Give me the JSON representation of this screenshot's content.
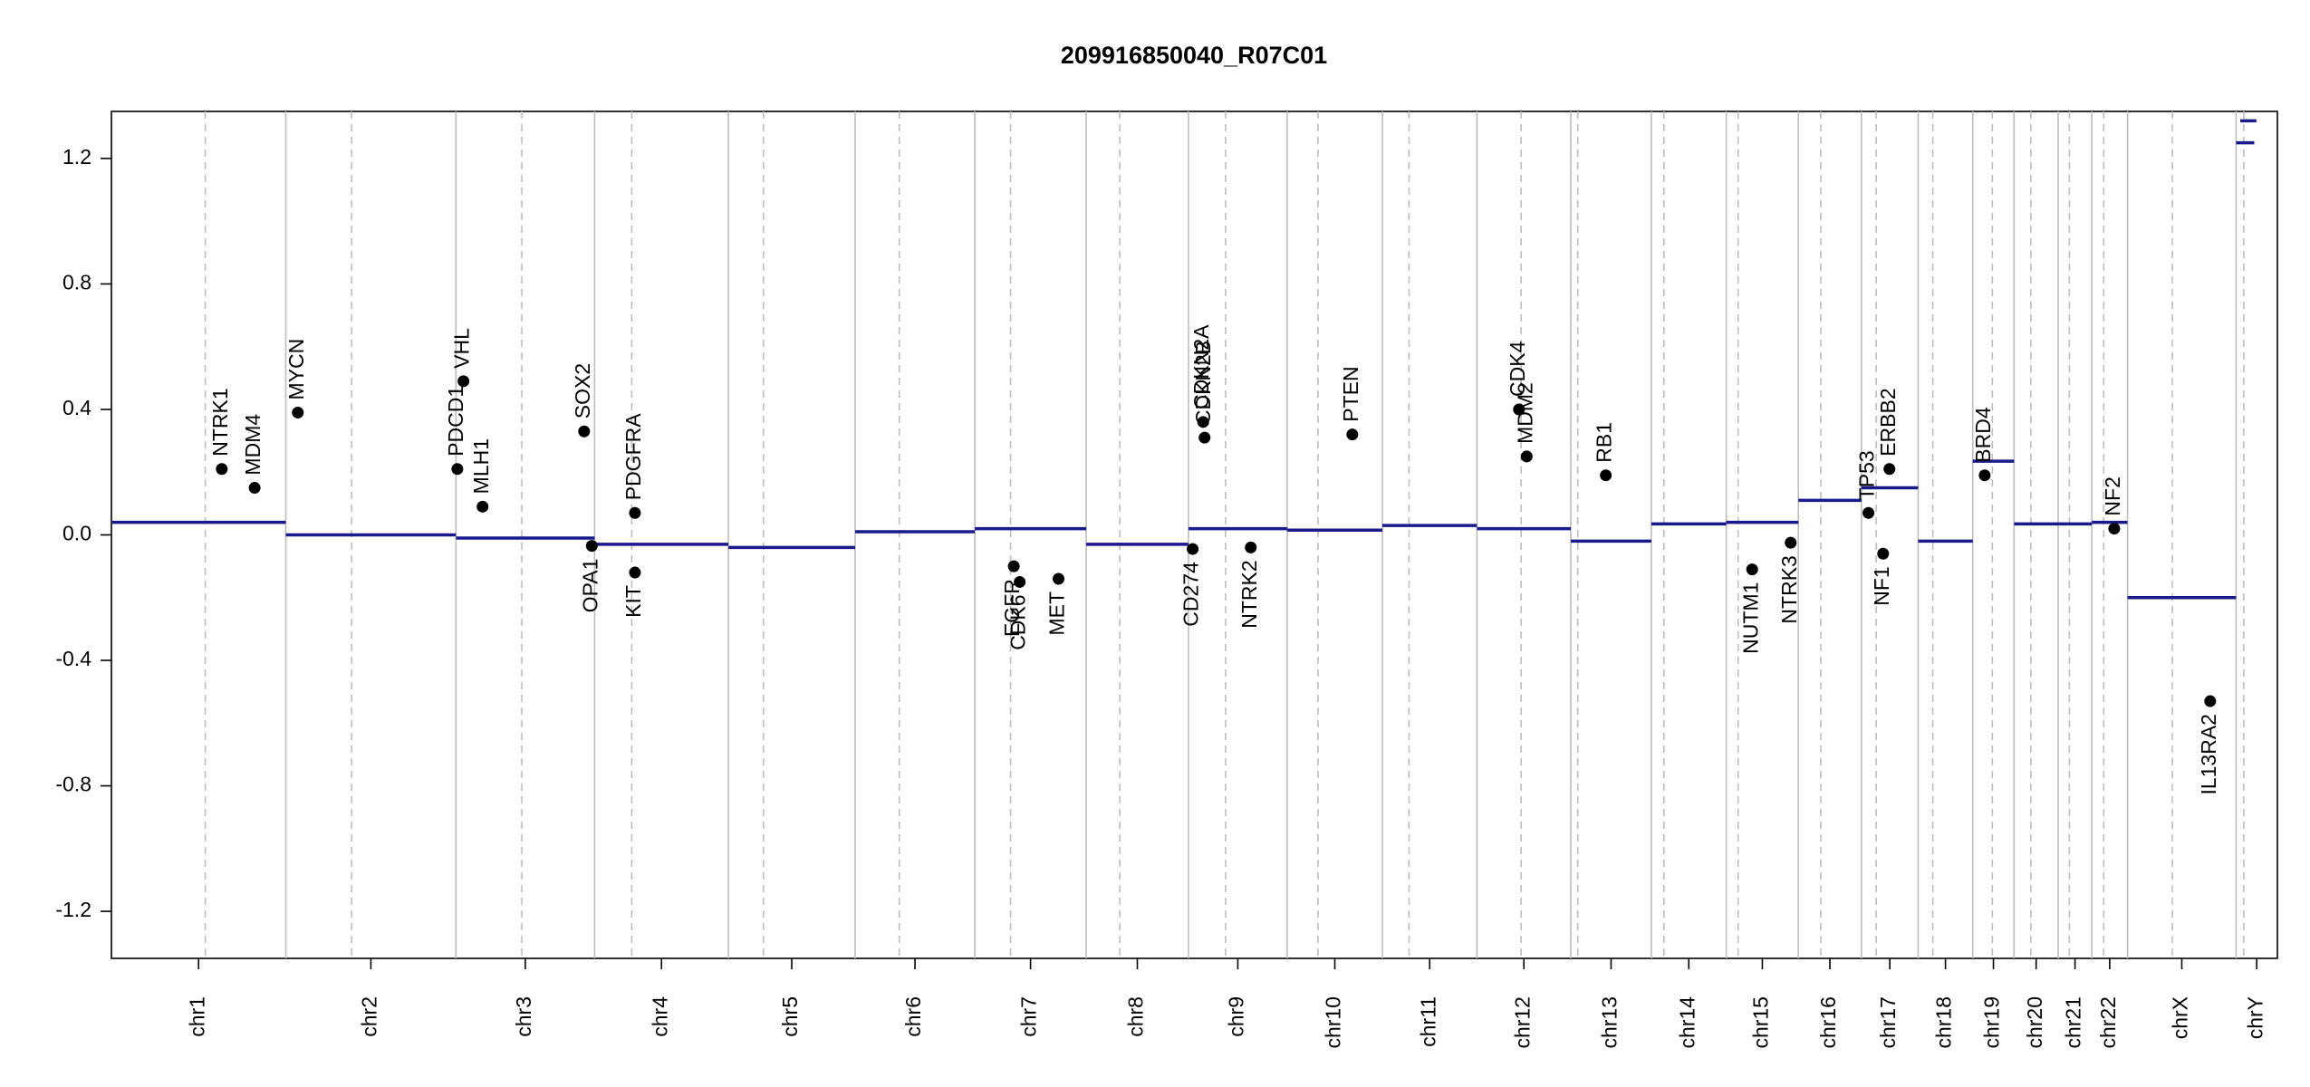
{
  "chart_data": {
    "type": "copy-number",
    "title": "209916850040_R07C01",
    "xlim": [
      0,
      3093
    ],
    "ylim": [
      -1.35,
      1.35
    ],
    "yticks": [
      -1.2,
      -0.8,
      -0.4,
      {
        "value": 0,
        "label": "0.0"
      },
      0.4,
      0.8,
      1.2
    ],
    "xticks": [
      {
        "value": 124.5,
        "label": "chr1"
      },
      {
        "value": 370.5,
        "label": "chr2"
      },
      {
        "value": 591,
        "label": "chr3"
      },
      {
        "value": 785.5,
        "label": "chr4"
      },
      {
        "value": 971.5,
        "label": "chr5"
      },
      {
        "value": 1147.5,
        "label": "chr6"
      },
      {
        "value": 1312.5,
        "label": "chr7"
      },
      {
        "value": 1465,
        "label": "chr8"
      },
      {
        "value": 1608.5,
        "label": "chr9"
      },
      {
        "value": 1747,
        "label": "chr10"
      },
      {
        "value": 1882.5,
        "label": "chr11"
      },
      {
        "value": 2017,
        "label": "chr12"
      },
      {
        "value": 2141.5,
        "label": "chr13"
      },
      {
        "value": 2252.5,
        "label": "chr14"
      },
      {
        "value": 2357.5,
        "label": "chr15"
      },
      {
        "value": 2454,
        "label": "chr16"
      },
      {
        "value": 2539.5,
        "label": "chr17"
      },
      {
        "value": 2619,
        "label": "chr18"
      },
      {
        "value": 2687.5,
        "label": "chr19"
      },
      {
        "value": 2748.5,
        "label": "chr20"
      },
      {
        "value": 2804,
        "label": "chr21"
      },
      {
        "value": 2853.5,
        "label": "chr22"
      },
      {
        "value": 2956.5,
        "label": "chrX"
      },
      {
        "value": 3063.5,
        "label": "chrY"
      }
    ],
    "boundaries": [
      249,
      492,
      690,
      881,
      1062,
      1233,
      1392,
      1538,
      1679,
      1815,
      1950,
      2084,
      2199,
      2306,
      2409,
      2499,
      2580,
      2658,
      2717,
      2780,
      2828,
      2879,
      3034
    ],
    "centromeres": [
      134,
      343,
      586,
      743,
      931,
      1125,
      1284,
      1440,
      1591,
      1723,
      1853,
      2013,
      2094,
      2217,
      2323,
      2441,
      2520,
      2601,
      2686,
      2741,
      2796,
      2845,
      2943,
      3045
    ],
    "segment_color": "#1a1a8c",
    "segments": [
      {
        "start": 0,
        "end": 249,
        "value": 0.04
      },
      {
        "start": 249,
        "end": 492,
        "value": 0.0
      },
      {
        "start": 492,
        "end": 690,
        "value": -0.01
      },
      {
        "start": 690,
        "end": 881,
        "value": -0.03
      },
      {
        "start": 881,
        "end": 1062,
        "value": -0.04
      },
      {
        "start": 1062,
        "end": 1233,
        "value": 0.01
      },
      {
        "start": 1233,
        "end": 1392,
        "value": 0.02
      },
      {
        "start": 1392,
        "end": 1538,
        "value": -0.03
      },
      {
        "start": 1538,
        "end": 1679,
        "value": 0.02
      },
      {
        "start": 1679,
        "end": 1815,
        "value": 0.015
      },
      {
        "start": 1815,
        "end": 1950,
        "value": 0.03
      },
      {
        "start": 1950,
        "end": 2084,
        "value": 0.02
      },
      {
        "start": 2084,
        "end": 2199,
        "value": -0.02
      },
      {
        "start": 2199,
        "end": 2306,
        "value": 0.035
      },
      {
        "start": 2306,
        "end": 2409,
        "value": 0.04
      },
      {
        "start": 2409,
        "end": 2499,
        "value": 0.11
      },
      {
        "start": 2499,
        "end": 2580,
        "value": 0.15
      },
      {
        "start": 2580,
        "end": 2658,
        "value": -0.02
      },
      {
        "start": 2658,
        "end": 2717,
        "value": 0.235
      },
      {
        "start": 2717,
        "end": 2780,
        "value": 0.035
      },
      {
        "start": 2780,
        "end": 2828,
        "value": 0.035
      },
      {
        "start": 2828,
        "end": 2879,
        "value": 0.04
      },
      {
        "start": 2879,
        "end": 3034,
        "value": -0.2
      },
      {
        "start": 3040,
        "end": 3063,
        "value": 1.32
      },
      {
        "start": 3034,
        "end": 3060,
        "value": 1.25
      }
    ],
    "genes": [
      {
        "name": "NTRK1",
        "x": 157.6,
        "value": 0.21
      },
      {
        "name": "MDM4",
        "x": 204.5,
        "value": 0.15
      },
      {
        "name": "MYCN",
        "x": 266.2,
        "value": 0.39
      },
      {
        "name": "PDCD1",
        "x": 494,
        "value": 0.21
      },
      {
        "name": "VHL",
        "x": 502.7,
        "value": 0.49
      },
      {
        "name": "MLH1",
        "x": 530,
        "value": 0.09
      },
      {
        "name": "SOX2",
        "x": 675,
        "value": 0.33
      },
      {
        "name": "OPA1",
        "x": 686,
        "value": -0.035
      },
      {
        "name": "PDGFRA",
        "x": 747.6,
        "value": 0.07
      },
      {
        "name": "KIT",
        "x": 747.6,
        "value": -0.12
      },
      {
        "name": "EGFR",
        "x": 1288.6,
        "value": -0.1
      },
      {
        "name": "CDK6",
        "x": 1297,
        "value": -0.15
      },
      {
        "name": "MET",
        "x": 1352.5,
        "value": -0.14
      },
      {
        "name": "CD274",
        "x": 1544,
        "value": -0.045
      },
      {
        "name": "CDKN2A",
        "x": 1559,
        "value": 0.36
      },
      {
        "name": "CDKN2B",
        "x": 1561,
        "value": 0.31
      },
      {
        "name": "NTRK2",
        "x": 1627,
        "value": -0.04
      },
      {
        "name": "PTEN",
        "x": 1772,
        "value": 0.32
      },
      {
        "name": "CDK4",
        "x": 2010,
        "value": 0.4
      },
      {
        "name": "MDM2",
        "x": 2021,
        "value": 0.25
      },
      {
        "name": "RB1",
        "x": 2134,
        "value": 0.19
      },
      {
        "name": "NUTM1",
        "x": 2343,
        "value": -0.11
      },
      {
        "name": "NTRK3",
        "x": 2398,
        "value": -0.025
      },
      {
        "name": "TP53",
        "x": 2509,
        "value": 0.07
      },
      {
        "name": "NF1",
        "x": 2530,
        "value": -0.06
      },
      {
        "name": "ERBB2",
        "x": 2539,
        "value": 0.21
      },
      {
        "name": "BRD4",
        "x": 2675,
        "value": 0.19
      },
      {
        "name": "NF2",
        "x": 2860,
        "value": 0.02
      },
      {
        "name": "IL13RA2",
        "x": 2997,
        "value": -0.53
      }
    ]
  }
}
